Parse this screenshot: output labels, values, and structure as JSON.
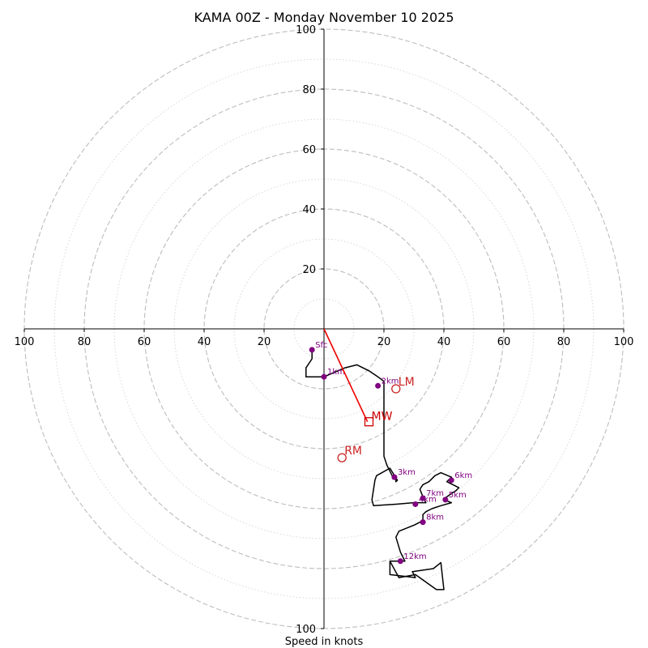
{
  "chart_data": {
    "type": "hodograph",
    "title": "KAMA 00Z - Monday November 10 2025",
    "xlabel": "Speed in knots",
    "max_speed": 100,
    "major_rings": [
      20,
      40,
      60,
      80,
      100
    ],
    "minor_rings": [
      10,
      30,
      50,
      70,
      90
    ],
    "x_tick_labels": [
      "100",
      "80",
      "60",
      "40",
      "20",
      "20",
      "40",
      "60",
      "80",
      "100"
    ],
    "x_tick_values": [
      -100,
      -80,
      -60,
      -40,
      -20,
      20,
      40,
      60,
      80,
      100
    ],
    "y_tick_labels": [
      "100",
      "80",
      "60",
      "40",
      "20"
    ],
    "y_tick_values": [
      100,
      80,
      60,
      40,
      20
    ],
    "y_bottom_label": "100",
    "hodograph": {
      "u": [
        -4,
        -4,
        -6,
        -6,
        0,
        7,
        11,
        15,
        18,
        20,
        20,
        20,
        20,
        20,
        20,
        21,
        23,
        24,
        24,
        24.5,
        22,
        17.5,
        17,
        16,
        16.5,
        24,
        30,
        34,
        33,
        32,
        33,
        35,
        37,
        39,
        42.5,
        41,
        45,
        44,
        41,
        40,
        42.5,
        39,
        36,
        34,
        33,
        33,
        30,
        25,
        24,
        25.5,
        27,
        22,
        22,
        30.5,
        29.5,
        36.5,
        39,
        40,
        37.5,
        30.5,
        25,
        22
      ],
      "v": [
        -7,
        -10,
        -13,
        -16,
        -16,
        -13,
        -12,
        -14,
        -16,
        -17.5,
        -20,
        -25,
        -30,
        -35,
        -42.5,
        -45.5,
        -49.5,
        -50,
        -51,
        -50.5,
        -46.5,
        -49,
        -50.5,
        -57,
        -59,
        -58.5,
        -58,
        -58,
        -56,
        -53.5,
        -52,
        -51,
        -49,
        -48,
        -49.5,
        -51,
        -53,
        -54,
        -56,
        -57,
        -58,
        -59,
        -60,
        -61,
        -62,
        -64,
        -65.5,
        -67.5,
        -69.5,
        -74.5,
        -77.5,
        -77.5,
        -82,
        -83,
        -81,
        -80,
        -78,
        -87,
        -87,
        -82,
        -83,
        -77.5
      ],
      "color": "#000000"
    },
    "height_markers": [
      {
        "label": "Sfc",
        "u": -4,
        "v": -7
      },
      {
        "label": "1km",
        "u": 0,
        "v": -16
      },
      {
        "label": "2km",
        "u": 18,
        "v": -19
      },
      {
        "label": "3km",
        "u": 23.5,
        "v": -49.5
      },
      {
        "label": "4km",
        "u": 30.5,
        "v": -58.5
      },
      {
        "label": "5km",
        "u": 40.5,
        "v": -57
      },
      {
        "label": "6km",
        "u": 42.5,
        "v": -50.5
      },
      {
        "label": "7km",
        "u": 33,
        "v": -56.5
      },
      {
        "label": "8km",
        "u": 33,
        "v": -64.5
      },
      {
        "label": "12km",
        "u": 25.5,
        "v": -77.5
      }
    ],
    "marker_color": "#800080",
    "mean_wind": {
      "label": "MW",
      "u": 15,
      "v": -31,
      "color": "#cc0000"
    },
    "shear_vector": {
      "from_u": 0,
      "from_v": 0,
      "to_u": 14.5,
      "to_v": -31,
      "color": "#ee0000"
    },
    "left_mover": {
      "label": "LM",
      "u": 24,
      "v": -20,
      "color": "#cc2222"
    },
    "right_mover": {
      "label": "RM",
      "u": 6,
      "v": -43,
      "color": "#cc2222"
    }
  }
}
